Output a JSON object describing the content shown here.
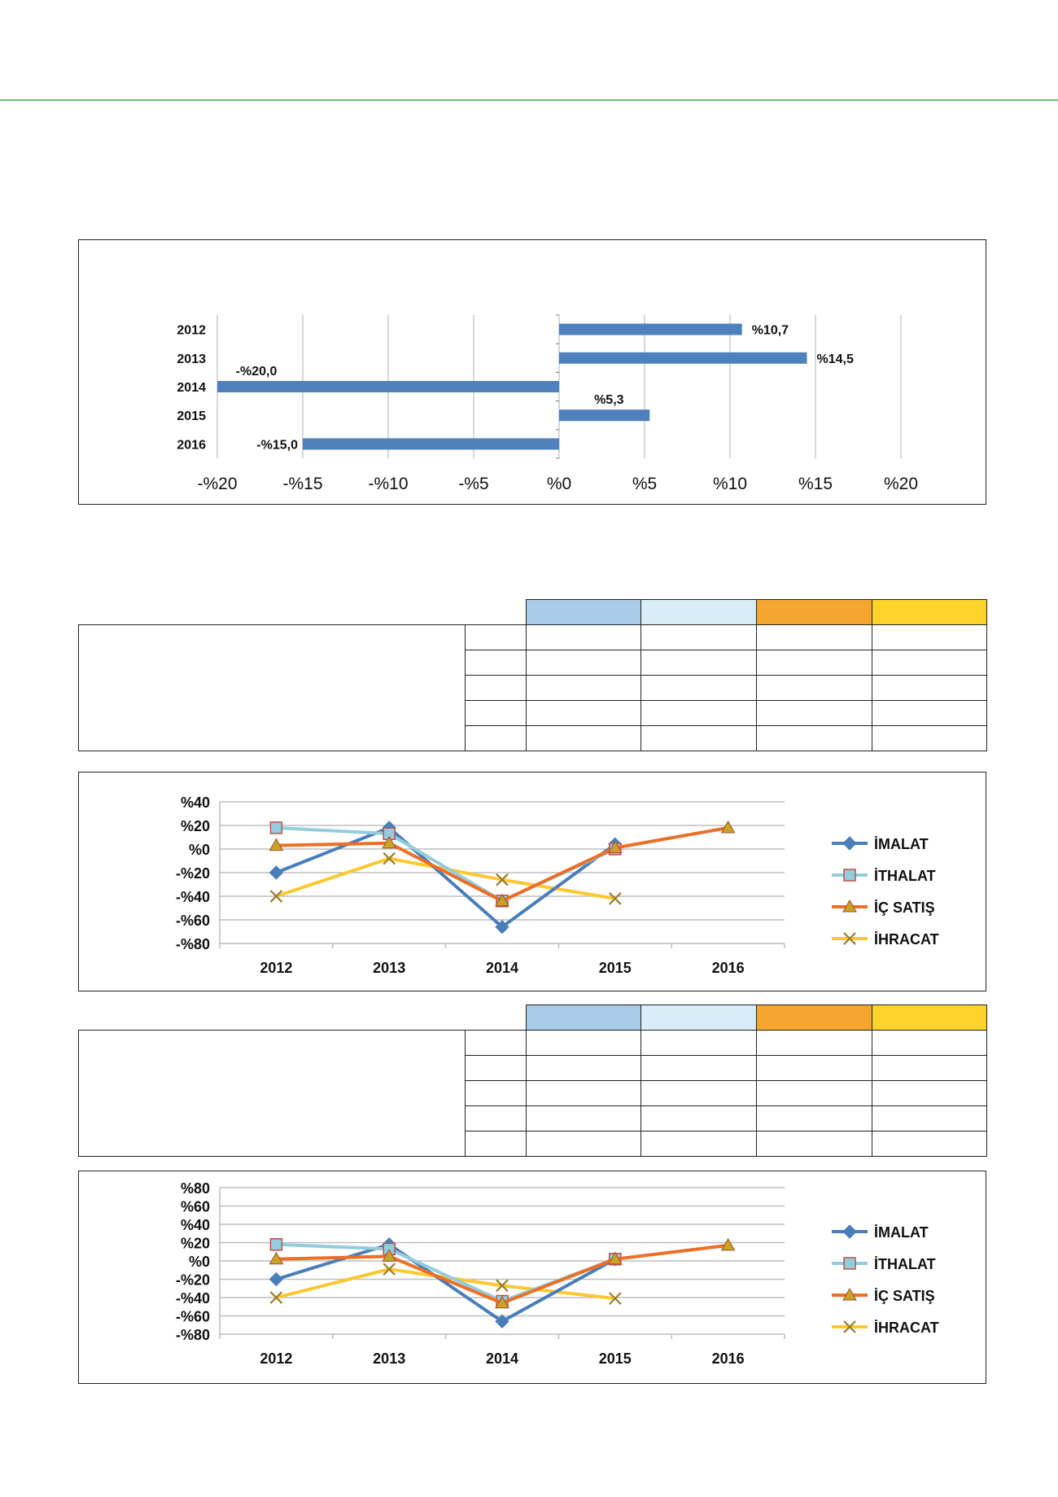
{
  "palette": {
    "accent_rule": "#6fbf73",
    "bar": "#4f81bd",
    "grid": "#bfbfbf",
    "head_colors": [
      "#a9cde9",
      "#d9edf7",
      "#f5a630",
      "#fdd32c"
    ]
  },
  "chart_data": [
    {
      "type": "bar",
      "orientation": "horizontal",
      "categories": [
        "2012",
        "2013",
        "2014",
        "2015",
        "2016"
      ],
      "values": [
        10.7,
        14.5,
        -20.0,
        5.3,
        -15.0
      ],
      "value_labels": [
        "%10,7",
        "%14,5",
        "-%20,0",
        "%5,3",
        "-%15,0"
      ],
      "xticks": [
        -20,
        -15,
        -10,
        -5,
        0,
        5,
        10,
        15,
        20
      ],
      "xtick_labels": [
        "-%20",
        "-%15",
        "-%10",
        "-%5",
        "%0",
        "%5",
        "%10",
        "%15",
        "%20"
      ],
      "xlim": [
        -20,
        20
      ],
      "grid": true
    },
    {
      "type": "line",
      "categories": [
        "2012",
        "2013",
        "2014",
        "2015",
        "2016"
      ],
      "ylim": [
        -80,
        40
      ],
      "yticks": [
        -80,
        -60,
        -40,
        -20,
        0,
        20,
        40
      ],
      "ytick_labels": [
        "-%80",
        "-%60",
        "-%40",
        "-%20",
        "%0",
        "%20",
        "%40"
      ],
      "legend_position": "right",
      "grid": true,
      "series": [
        {
          "name": "İMALAT",
          "color": "#4a7ebb",
          "marker": "diamond",
          "values": [
            -20,
            18,
            -66,
            4,
            null
          ]
        },
        {
          "name": "İTHALAT",
          "color": "#93cddd",
          "marker": "square",
          "values": [
            18,
            13,
            -44,
            0,
            null
          ]
        },
        {
          "name": "İÇ SATIŞ",
          "color": "#ec6f26",
          "marker": "triangle",
          "values": [
            3,
            5,
            -44,
            1,
            18
          ]
        },
        {
          "name": "İHRACAT",
          "color": "#fdc82f",
          "marker": "x",
          "values": [
            -40,
            -8,
            -26,
            -42,
            null
          ]
        }
      ]
    },
    {
      "type": "line",
      "categories": [
        "2012",
        "2013",
        "2014",
        "2015",
        "2016"
      ],
      "ylim": [
        -80,
        80
      ],
      "yticks": [
        -80,
        -60,
        -40,
        -20,
        0,
        20,
        40,
        60,
        80
      ],
      "ytick_labels": [
        "-%80",
        "-%60",
        "-%40",
        "-%20",
        "%0",
        "%20",
        "%40",
        "%60",
        "%80"
      ],
      "legend_position": "right",
      "grid": true,
      "series": [
        {
          "name": "İMALAT",
          "color": "#4a7ebb",
          "marker": "diamond",
          "values": [
            -20,
            18,
            -66,
            2,
            null
          ]
        },
        {
          "name": "İTHALAT",
          "color": "#93cddd",
          "marker": "square",
          "values": [
            18,
            13,
            -44,
            2,
            null
          ]
        },
        {
          "name": "İÇ SATIŞ",
          "color": "#ec6f26",
          "marker": "triangle",
          "values": [
            2,
            5,
            -46,
            2,
            17
          ]
        },
        {
          "name": "İHRACAT",
          "color": "#fdc82f",
          "marker": "x",
          "values": [
            -40,
            -9,
            -27,
            -41,
            null
          ]
        }
      ]
    }
  ]
}
